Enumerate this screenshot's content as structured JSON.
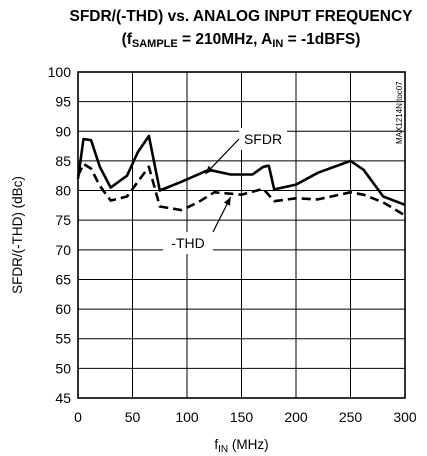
{
  "chart_data": {
    "type": "line",
    "title": {
      "line1": "SFDR/(-THD) vs. ANALOG INPUT FREQUENCY",
      "line2_pre": "(f",
      "line2_sub1": "SAMPLE",
      "line2_mid": " = 210MHz, A",
      "line2_sub2": "IN",
      "line2_post": " = -1dBFS)"
    },
    "xlabel": {
      "main": "f",
      "sub": "IN",
      "post": " (MHz)"
    },
    "ylabel": "SFDR/(-THD) (dBc)",
    "xlim": [
      0,
      300
    ],
    "ylim": [
      45,
      100
    ],
    "xticks": [
      0,
      50,
      100,
      150,
      200,
      250,
      300
    ],
    "yticks": [
      45,
      50,
      55,
      60,
      65,
      70,
      75,
      80,
      85,
      90,
      95,
      100
    ],
    "grid": true,
    "watermark": "MAX1214N toc07",
    "series": [
      {
        "name": "SFDR",
        "style": "solid",
        "color": "#000000",
        "x": [
          0,
          5,
          12,
          20,
          30,
          45,
          55,
          65,
          75,
          95,
          120,
          140,
          160,
          170,
          175,
          180,
          200,
          220,
          250,
          262,
          280,
          300
        ],
        "y": [
          82,
          88.7,
          88.5,
          84,
          80.5,
          82.5,
          86.5,
          89.2,
          80,
          81.5,
          83.5,
          82.7,
          82.7,
          84,
          84.2,
          80.2,
          81,
          83,
          85,
          83.5,
          79,
          77.6
        ]
      },
      {
        "name": "-THD",
        "style": "dashed",
        "color": "#000000",
        "x": [
          0,
          5,
          12,
          20,
          30,
          45,
          55,
          65,
          75,
          95,
          110,
          125,
          150,
          170,
          180,
          200,
          220,
          250,
          262,
          280,
          300
        ],
        "y": [
          82.5,
          84.5,
          83.7,
          80.8,
          78.3,
          79,
          81.5,
          84,
          77.3,
          76.7,
          78,
          79.7,
          79.3,
          80.3,
          78.2,
          78.7,
          78.5,
          79.7,
          79.3,
          78,
          75.8
        ]
      }
    ],
    "annotations": [
      {
        "text": "SFDR",
        "target_series": "SFDR"
      },
      {
        "text": "-THD",
        "target_series": "-THD"
      }
    ]
  }
}
